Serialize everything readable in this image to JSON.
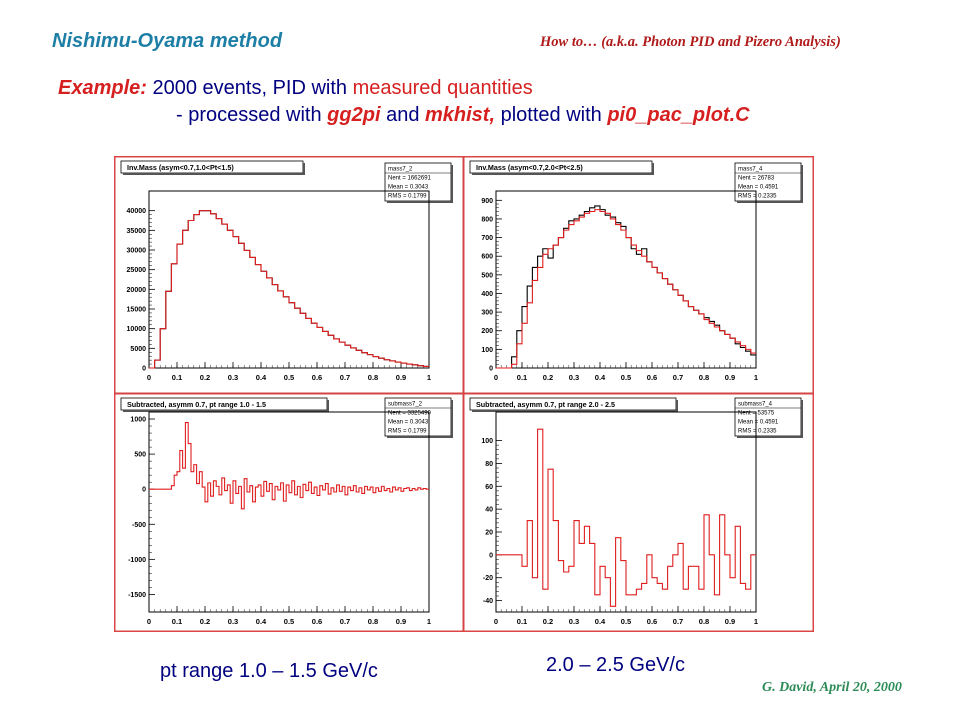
{
  "header": {
    "title": "Nishimu-Oyama method",
    "note": "How to… (a.k.a. Photon PID and Pizero Analysis)"
  },
  "intro": {
    "example_label": "Example:",
    "example_pre": " 2000 events, PID with ",
    "example_colored": "measured quantities",
    "proc_pre": "- processed with ",
    "proc_tool1": "gg2pi",
    "proc_and": " and ",
    "proc_tool2": "mkhist,",
    "proc_mid": " plotted with ",
    "proc_tool3": "pi0_pac_plot.C"
  },
  "footer": {
    "left_caption": "pt range 1.0 – 1.5 GeV/c",
    "right_caption": "2.0 – 2.5 GeV/c",
    "credit": "G. David, April 20, 2000"
  },
  "colors": {
    "hist_red": "#e01e1e",
    "hist_black": "#000000",
    "frame_red": "#d44444"
  },
  "chart_data": [
    {
      "type": "line",
      "title": "Inv.Mass (asym<0.7,1.0<Pt<1.5)",
      "stats": {
        "name": "mass7_2",
        "Nent": "1662691",
        "Mean": "0.3043",
        "RMS": "0.1799"
      },
      "xlim": [
        0,
        1
      ],
      "ylim": [
        0,
        45000
      ],
      "xticks": [
        "0",
        "0.1",
        "0.2",
        "0.3",
        "0.4",
        "0.5",
        "0.6",
        "0.7",
        "0.8",
        "0.9",
        "1"
      ],
      "yticks": [
        0,
        5000,
        10000,
        15000,
        20000,
        25000,
        30000,
        35000,
        40000
      ],
      "ytick_labels": [
        "0",
        "5000",
        "10000",
        "15000",
        "20000",
        "25000",
        "30000",
        "35000",
        "40000"
      ],
      "bins": 50,
      "series": [
        {
          "color": "#000000",
          "values": [
            0,
            2000,
            10000,
            19500,
            26500,
            31500,
            35000,
            37500,
            39000,
            40000,
            40000,
            39200,
            38000,
            36600,
            35000,
            33400,
            31700,
            29900,
            28100,
            26300,
            24600,
            22900,
            21200,
            19600,
            18100,
            16600,
            15200,
            13900,
            12600,
            11400,
            10300,
            9300,
            8300,
            7400,
            6600,
            5800,
            5100,
            4500,
            3900,
            3400,
            2900,
            2500,
            2100,
            1800,
            1500,
            1250,
            1000,
            800,
            600,
            400
          ]
        },
        {
          "color": "#e01e1e",
          "values": [
            0,
            2000,
            10000,
            19500,
            26500,
            31500,
            35000,
            37500,
            39000,
            40000,
            40000,
            39200,
            38000,
            36600,
            35000,
            33400,
            31700,
            29900,
            28100,
            26300,
            24600,
            22900,
            21200,
            19600,
            18100,
            16600,
            15200,
            13900,
            12600,
            11400,
            10300,
            9300,
            8300,
            7400,
            6600,
            5800,
            5100,
            4500,
            3900,
            3400,
            2900,
            2500,
            2100,
            1800,
            1500,
            1250,
            1000,
            800,
            600,
            400
          ]
        }
      ]
    },
    {
      "type": "line",
      "title": "Inv.Mass (asym<0.7,2.0<Pt<2.5)",
      "stats": {
        "name": "mass7_4",
        "Nent": "26783",
        "Mean": "0.4591",
        "RMS": "0.2335"
      },
      "xlim": [
        0,
        1
      ],
      "ylim": [
        0,
        950
      ],
      "xticks": [
        "0",
        "0.1",
        "0.2",
        "0.3",
        "0.4",
        "0.5",
        "0.6",
        "0.7",
        "0.8",
        "0.9",
        "1"
      ],
      "yticks": [
        0,
        100,
        200,
        300,
        400,
        500,
        600,
        700,
        800,
        900
      ],
      "ytick_labels": [
        "0",
        "100",
        "200",
        "300",
        "400",
        "500",
        "600",
        "700",
        "800",
        "900"
      ],
      "bins": 50,
      "series": [
        {
          "color": "#000000",
          "values": [
            0,
            0,
            0,
            60,
            200,
            330,
            440,
            540,
            600,
            640,
            590,
            660,
            700,
            750,
            790,
            800,
            820,
            840,
            860,
            870,
            850,
            820,
            810,
            780,
            760,
            700,
            640,
            610,
            640,
            570,
            540,
            510,
            480,
            450,
            420,
            390,
            360,
            330,
            310,
            290,
            270,
            250,
            230,
            200,
            180,
            160,
            130,
            110,
            90,
            70
          ]
        },
        {
          "color": "#e01e1e",
          "values": [
            0,
            0,
            0,
            20,
            130,
            240,
            350,
            470,
            540,
            610,
            640,
            660,
            700,
            740,
            770,
            790,
            810,
            830,
            840,
            850,
            840,
            830,
            800,
            770,
            740,
            700,
            660,
            630,
            600,
            570,
            540,
            510,
            480,
            450,
            420,
            390,
            360,
            330,
            310,
            290,
            260,
            240,
            220,
            200,
            180,
            160,
            140,
            120,
            100,
            80
          ]
        }
      ]
    },
    {
      "type": "line",
      "title": "Subtracted, asymm 0.7, pt range 1.0 - 1.5",
      "stats": {
        "name": "submass7_2",
        "Nent": "3325490",
        "Mean": "0.3043",
        "RMS": "0.1799"
      },
      "xlim": [
        0,
        1
      ],
      "ylim": [
        -1750,
        1100
      ],
      "xticks": [
        "0",
        "0.1",
        "0.2",
        "0.3",
        "0.4",
        "0.5",
        "0.6",
        "0.7",
        "0.8",
        "0.9",
        "1"
      ],
      "yticks": [
        -1500,
        -1000,
        -500,
        0,
        500,
        1000
      ],
      "ytick_labels": [
        "-1500",
        "-1000",
        "-500",
        "0",
        "500",
        "1000"
      ],
      "bins": 100,
      "series": [
        {
          "color": "#e01e1e",
          "values": [
            0,
            0,
            0,
            0,
            0,
            0,
            0,
            0,
            50,
            200,
            250,
            550,
            300,
            950,
            650,
            250,
            350,
            80,
            250,
            30,
            -180,
            90,
            -100,
            120,
            40,
            -80,
            160,
            -20,
            60,
            -200,
            120,
            -60,
            40,
            -280,
            150,
            -40,
            50,
            -180,
            30,
            60,
            -100,
            110,
            -30,
            80,
            -150,
            40,
            -10,
            90,
            -170,
            60,
            -50,
            120,
            -80,
            40,
            -120,
            70,
            -20,
            100,
            -60,
            30,
            -90,
            50,
            -10,
            80,
            -70,
            20,
            -40,
            60,
            -30,
            40,
            -80,
            30,
            -20,
            50,
            -40,
            20,
            -60,
            40,
            -10,
            30,
            -50,
            20,
            -30,
            40,
            -20,
            10,
            -40,
            30,
            -10,
            20,
            -30,
            10,
            20,
            -20,
            10,
            -10,
            20,
            0,
            10,
            0
          ]
        }
      ]
    },
    {
      "type": "line",
      "title": "Subtracted, asymm 0.7, pt range 2.0 - 2.5",
      "stats": {
        "name": "submass7_4",
        "Nent": "53575",
        "Mean": "0.4591",
        "RMS": "0.2335"
      },
      "xlim": [
        0,
        1
      ],
      "ylim": [
        -50,
        125
      ],
      "xticks": [
        "0",
        "0.1",
        "0.2",
        "0.3",
        "0.4",
        "0.5",
        "0.6",
        "0.7",
        "0.8",
        "0.9",
        "1"
      ],
      "yticks": [
        -40,
        -20,
        0,
        20,
        40,
        60,
        80,
        100
      ],
      "ytick_labels": [
        "-40",
        "-20",
        "0",
        "20",
        "40",
        "60",
        "80",
        "100"
      ],
      "bins": 50,
      "series": [
        {
          "color": "#e01e1e",
          "values": [
            0,
            0,
            0,
            0,
            0,
            -10,
            30,
            -20,
            110,
            -30,
            75,
            30,
            -5,
            -15,
            -10,
            30,
            10,
            25,
            10,
            -35,
            -10,
            -20,
            -45,
            15,
            -5,
            -35,
            -35,
            -30,
            -25,
            0,
            -20,
            -25,
            -30,
            -10,
            0,
            10,
            -30,
            -10,
            -10,
            -30,
            35,
            0,
            -35,
            35,
            0,
            -20,
            25,
            -25,
            -30,
            0
          ]
        }
      ]
    }
  ]
}
